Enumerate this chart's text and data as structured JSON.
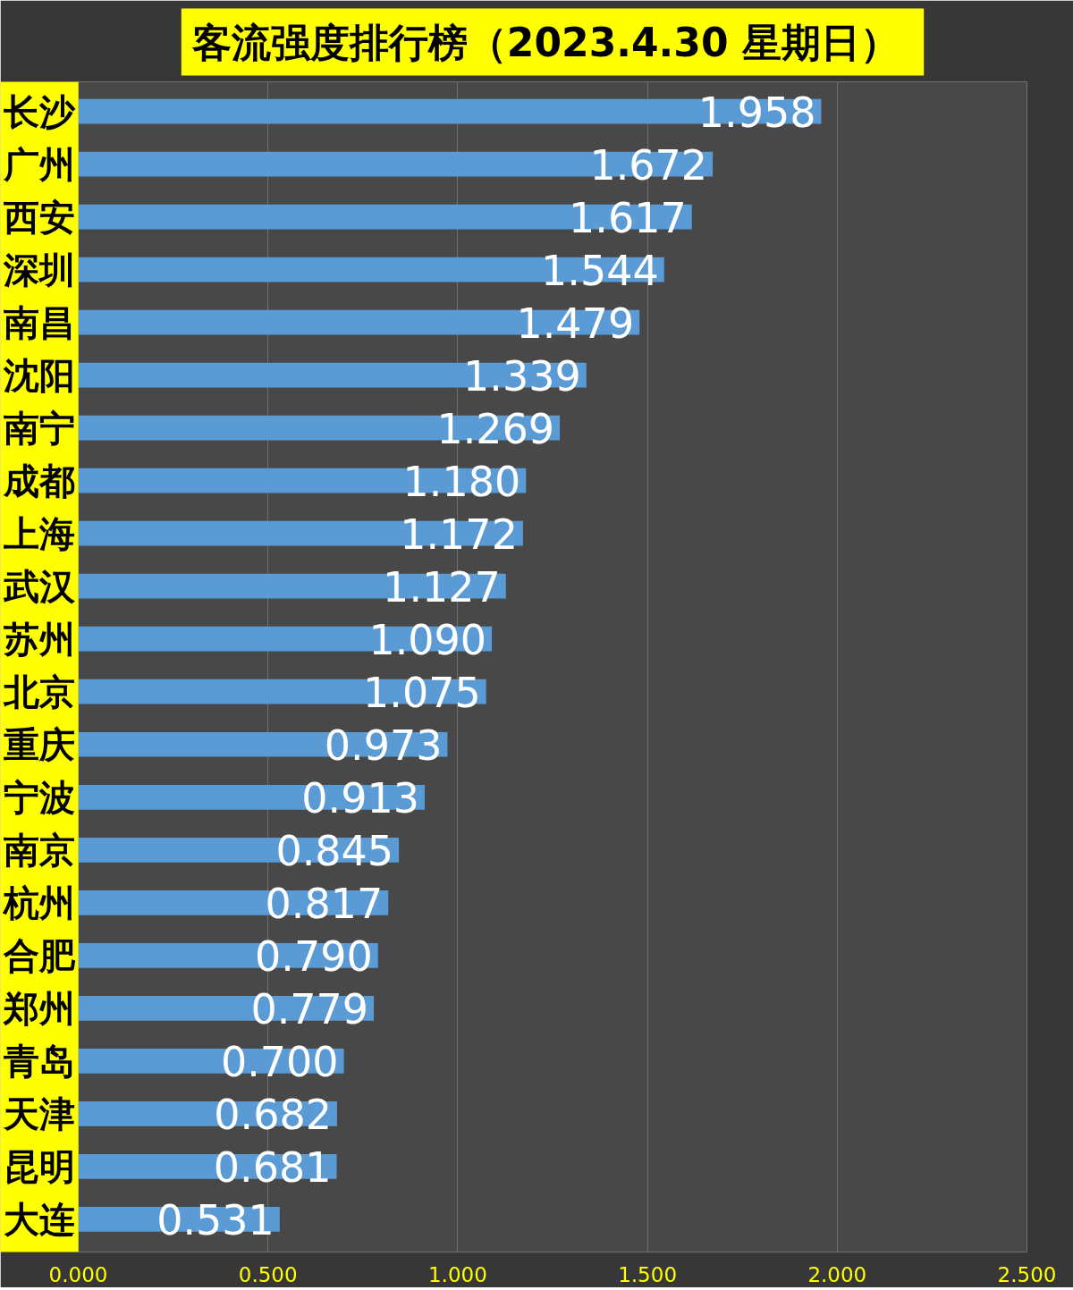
{
  "chart_data": {
    "type": "bar",
    "orientation": "horizontal",
    "title": "客流强度排行榜（2023.4.30  星期日）",
    "categories": [
      "长沙",
      "广州",
      "西安",
      "深圳",
      "南昌",
      "沈阳",
      "南宁",
      "成都",
      "上海",
      "武汉",
      "苏州",
      "北京",
      "重庆",
      "宁波",
      "南京",
      "杭州",
      "合肥",
      "郑州",
      "青岛",
      "天津",
      "昆明",
      "大连"
    ],
    "values": [
      1.958,
      1.672,
      1.617,
      1.544,
      1.479,
      1.339,
      1.269,
      1.18,
      1.172,
      1.127,
      1.09,
      1.075,
      0.973,
      0.913,
      0.845,
      0.817,
      0.79,
      0.779,
      0.7,
      0.682,
      0.681,
      0.531
    ],
    "value_labels": [
      "1.958",
      "1.672",
      "1.617",
      "1.544",
      "1.479",
      "1.339",
      "1.269",
      "1.180",
      "1.172",
      "1.127",
      "1.090",
      "1.075",
      "0.973",
      "0.913",
      "0.845",
      "0.817",
      "0.790",
      "0.779",
      "0.700",
      "0.682",
      "0.681",
      "0.531"
    ],
    "color": "#5b9bd5",
    "xlim": [
      0,
      2.5
    ],
    "xticks": [
      {
        "value": 0,
        "label": "0.000"
      },
      {
        "value": 0.5,
        "label": "0.500"
      },
      {
        "value": 1.0,
        "label": "1.000"
      },
      {
        "value": 1.5,
        "label": "1.500"
      },
      {
        "value": 2.0,
        "label": "2.000"
      },
      {
        "value": 2.5,
        "label": "2.500"
      }
    ],
    "grid": "x"
  }
}
